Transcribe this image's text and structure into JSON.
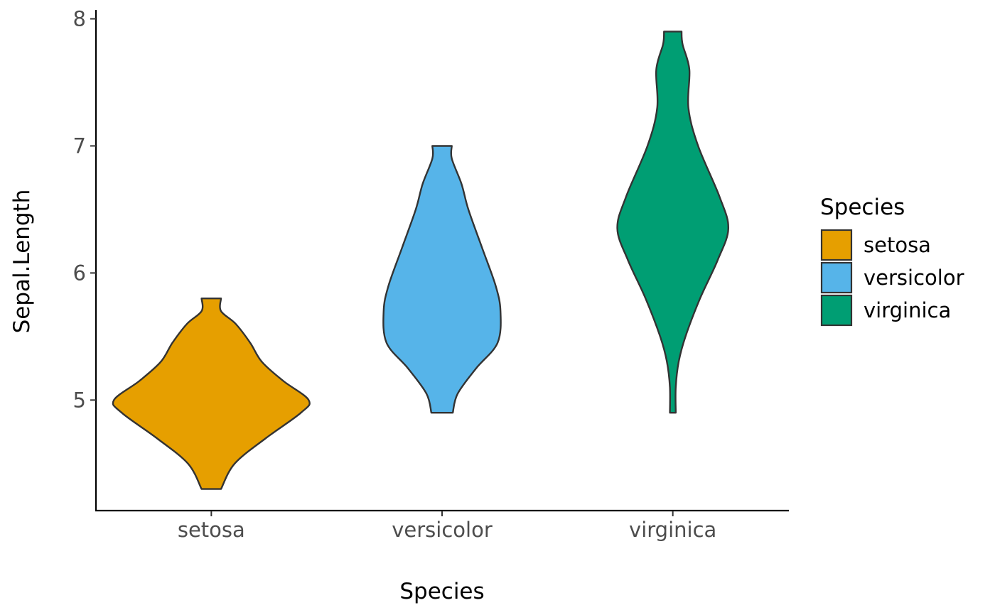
{
  "chart_data": {
    "type": "violin",
    "xlabel": "Species",
    "ylabel": "Sepal.Length",
    "categories": [
      "setosa",
      "versicolor",
      "virginica"
    ],
    "yticks": [
      "5",
      "6",
      "7",
      "8"
    ],
    "ylim": [
      4.13,
      8.07
    ],
    "grid": false,
    "legend": {
      "title": "Species",
      "position": "right",
      "items": [
        "setosa",
        "versicolor",
        "virginica"
      ]
    },
    "series": [
      {
        "category": "setosa",
        "color": "#E69F00",
        "min": 4.3,
        "max": 5.8,
        "density": [
          [
            4.3,
            0.1
          ],
          [
            4.5,
            0.24
          ],
          [
            4.7,
            0.56
          ],
          [
            4.9,
            0.92
          ],
          [
            5.0,
            1.0
          ],
          [
            5.15,
            0.74
          ],
          [
            5.3,
            0.52
          ],
          [
            5.45,
            0.4
          ],
          [
            5.6,
            0.25
          ],
          [
            5.7,
            0.1
          ],
          [
            5.8,
            0.1
          ]
        ]
      },
      {
        "category": "versicolor",
        "color": "#56B4E9",
        "min": 4.9,
        "max": 7.0,
        "density": [
          [
            4.9,
            0.11
          ],
          [
            5.05,
            0.16
          ],
          [
            5.25,
            0.35
          ],
          [
            5.45,
            0.57
          ],
          [
            5.7,
            0.6
          ],
          [
            5.9,
            0.55
          ],
          [
            6.2,
            0.41
          ],
          [
            6.5,
            0.27
          ],
          [
            6.7,
            0.2
          ],
          [
            6.9,
            0.1
          ],
          [
            7.0,
            0.1
          ]
        ]
      },
      {
        "category": "virginica",
        "color": "#009E73",
        "min": 4.9,
        "max": 7.9,
        "density": [
          [
            4.9,
            0.03
          ],
          [
            5.1,
            0.03
          ],
          [
            5.3,
            0.06
          ],
          [
            5.5,
            0.13
          ],
          [
            5.8,
            0.28
          ],
          [
            6.1,
            0.46
          ],
          [
            6.35,
            0.57
          ],
          [
            6.6,
            0.48
          ],
          [
            7.0,
            0.26
          ],
          [
            7.3,
            0.16
          ],
          [
            7.6,
            0.17
          ],
          [
            7.8,
            0.1
          ],
          [
            7.9,
            0.09
          ]
        ]
      }
    ]
  }
}
